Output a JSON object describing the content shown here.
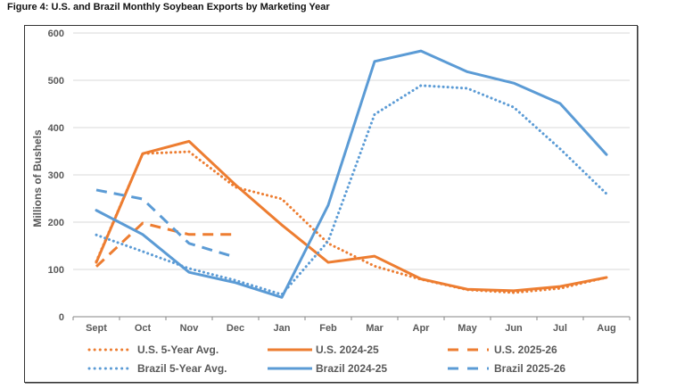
{
  "chart_data": {
    "type": "line",
    "title": "Figure 4: U.S. and Brazil Monthly Soybean Exports by Marketing Year",
    "xlabel": "",
    "ylabel": "Millions of Bushels",
    "ylim": [
      0,
      600
    ],
    "yticks": [
      0,
      100,
      200,
      300,
      400,
      500,
      600
    ],
    "grid": true,
    "legend_position": "bottom",
    "categories": [
      "Sept",
      "Oct",
      "Nov",
      "Dec",
      "Jan",
      "Feb",
      "Mar",
      "Apr",
      "May",
      "Jun",
      "Jul",
      "Aug"
    ],
    "series": [
      {
        "name": "U.S. 5-Year Avg.",
        "color": "#ED7D31",
        "style": "dotted",
        "values": [
          117,
          345,
          349,
          274,
          249,
          155,
          107,
          79,
          57,
          51,
          60,
          83
        ]
      },
      {
        "name": "U.S. 2024-25",
        "color": "#ED7D31",
        "style": "solid",
        "values": [
          115,
          345,
          371,
          279,
          194,
          115,
          128,
          80,
          58,
          55,
          64,
          83
        ]
      },
      {
        "name": "U.S. 2025-26",
        "color": "#ED7D31",
        "style": "dashed",
        "values": [
          106,
          198,
          174,
          174,
          null,
          null,
          null,
          null,
          null,
          null,
          null,
          null
        ]
      },
      {
        "name": "Brazil 5-Year Avg.",
        "color": "#5B9BD5",
        "style": "dotted",
        "values": [
          173,
          138,
          102,
          77,
          47,
          160,
          428,
          489,
          483,
          443,
          355,
          260
        ]
      },
      {
        "name": "Brazil 2024-25",
        "color": "#5B9BD5",
        "style": "solid",
        "values": [
          225,
          174,
          94,
          72,
          41,
          236,
          540,
          562,
          518,
          494,
          451,
          343
        ]
      },
      {
        "name": "Brazil 2025-26",
        "color": "#5B9BD5",
        "style": "dashed",
        "values": [
          268,
          249,
          155,
          126,
          null,
          null,
          null,
          null,
          null,
          null,
          null,
          null
        ]
      }
    ]
  }
}
